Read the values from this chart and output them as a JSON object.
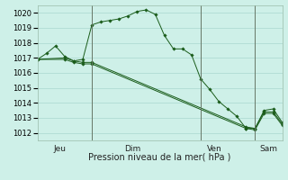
{
  "title": "Pression niveau de la mer( hPa )",
  "bg_color": "#cef0e8",
  "grid_color": "#aad8d0",
  "line_color": "#1a5c1a",
  "ylim": [
    1011.5,
    1020.5
  ],
  "yticks": [
    1012,
    1013,
    1014,
    1015,
    1016,
    1017,
    1018,
    1019,
    1020
  ],
  "tick_fontsize": 6.0,
  "xlabel_fontsize": 7.0,
  "day_label_fontsize": 6.5,
  "series": [
    {
      "x": [
        0,
        1,
        2,
        3,
        4,
        5,
        6,
        7,
        8,
        9,
        10,
        11,
        12,
        13,
        14,
        15,
        16,
        17,
        18,
        19,
        20,
        21,
        22,
        23,
        24,
        25,
        26,
        27
      ],
      "y": [
        1016.9,
        1017.3,
        1017.8,
        1017.1,
        1016.8,
        1016.9,
        1019.2,
        1019.4,
        1019.5,
        1019.6,
        1019.8,
        1020.1,
        1020.2,
        1019.9,
        1018.5,
        1017.6,
        1017.6,
        1017.2,
        1015.6,
        1014.9,
        1014.1,
        1013.6,
        1013.1,
        1012.3,
        1012.3,
        1013.5,
        1013.6,
        1012.7
      ]
    },
    {
      "x": [
        0,
        3,
        4,
        5,
        6,
        23,
        24,
        25,
        26,
        27
      ],
      "y": [
        1016.9,
        1017.0,
        1016.8,
        1016.7,
        1016.7,
        1012.4,
        1012.3,
        1013.4,
        1013.4,
        1012.6
      ]
    },
    {
      "x": [
        0,
        3,
        4,
        5,
        6,
        23,
        24,
        25,
        26,
        27
      ],
      "y": [
        1016.9,
        1016.9,
        1016.7,
        1016.6,
        1016.6,
        1012.3,
        1012.2,
        1013.3,
        1013.3,
        1012.5
      ]
    }
  ],
  "vlines_x": [
    6,
    18,
    24
  ],
  "day_labels": [
    {
      "x": 2.5,
      "label": "Jeu"
    },
    {
      "x": 10.5,
      "label": "Dim"
    },
    {
      "x": 19.5,
      "label": "Ven"
    },
    {
      "x": 25.5,
      "label": "Sam"
    }
  ],
  "xlim": [
    0,
    27
  ]
}
